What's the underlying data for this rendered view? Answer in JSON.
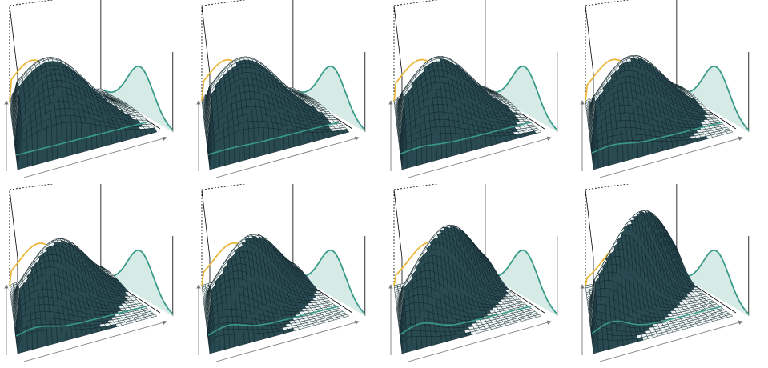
{
  "colors": {
    "surface_line": "#0f2228",
    "surface_fill": "#eef5f4",
    "surface_fill_shadow": "#2a4a52",
    "box": "#000000",
    "marginal_x": "#e9b73a",
    "marginal_y": "#3a9a8a",
    "marginal_y_fill": "#cfe8e2",
    "axis_arrow": "#7a7a7a"
  },
  "chart_data": [
    {
      "type": "surface",
      "grid": false,
      "peak_u": 0.28,
      "peak_v": 0.42,
      "height": 1.0,
      "rho": 0.0,
      "mix": 0.0
    },
    {
      "type": "surface",
      "grid": false,
      "peak_u": 0.3,
      "peak_v": 0.44,
      "height": 0.98,
      "rho": 0.15,
      "mix": 0.1
    },
    {
      "type": "surface",
      "grid": false,
      "peak_u": 0.32,
      "peak_v": 0.46,
      "height": 0.96,
      "rho": 0.3,
      "mix": 0.25
    },
    {
      "type": "surface",
      "grid": false,
      "peak_u": 0.34,
      "peak_v": 0.5,
      "height": 0.93,
      "rho": 0.45,
      "mix": 0.4
    },
    {
      "type": "surface",
      "grid": false,
      "peak_u": 0.36,
      "peak_v": 0.54,
      "height": 0.9,
      "rho": 0.55,
      "mix": 0.55
    },
    {
      "type": "surface",
      "grid": false,
      "peak_u": 0.38,
      "peak_v": 0.58,
      "height": 0.92,
      "rho": 0.65,
      "mix": 0.7
    },
    {
      "type": "surface",
      "grid": false,
      "peak_u": 0.42,
      "peak_v": 0.62,
      "height": 1.0,
      "rho": 0.75,
      "mix": 0.85
    },
    {
      "type": "surface",
      "grid": false,
      "peak_u": 0.46,
      "peak_v": 0.7,
      "height": 1.12,
      "rho": 0.85,
      "mix": 1.0
    }
  ]
}
